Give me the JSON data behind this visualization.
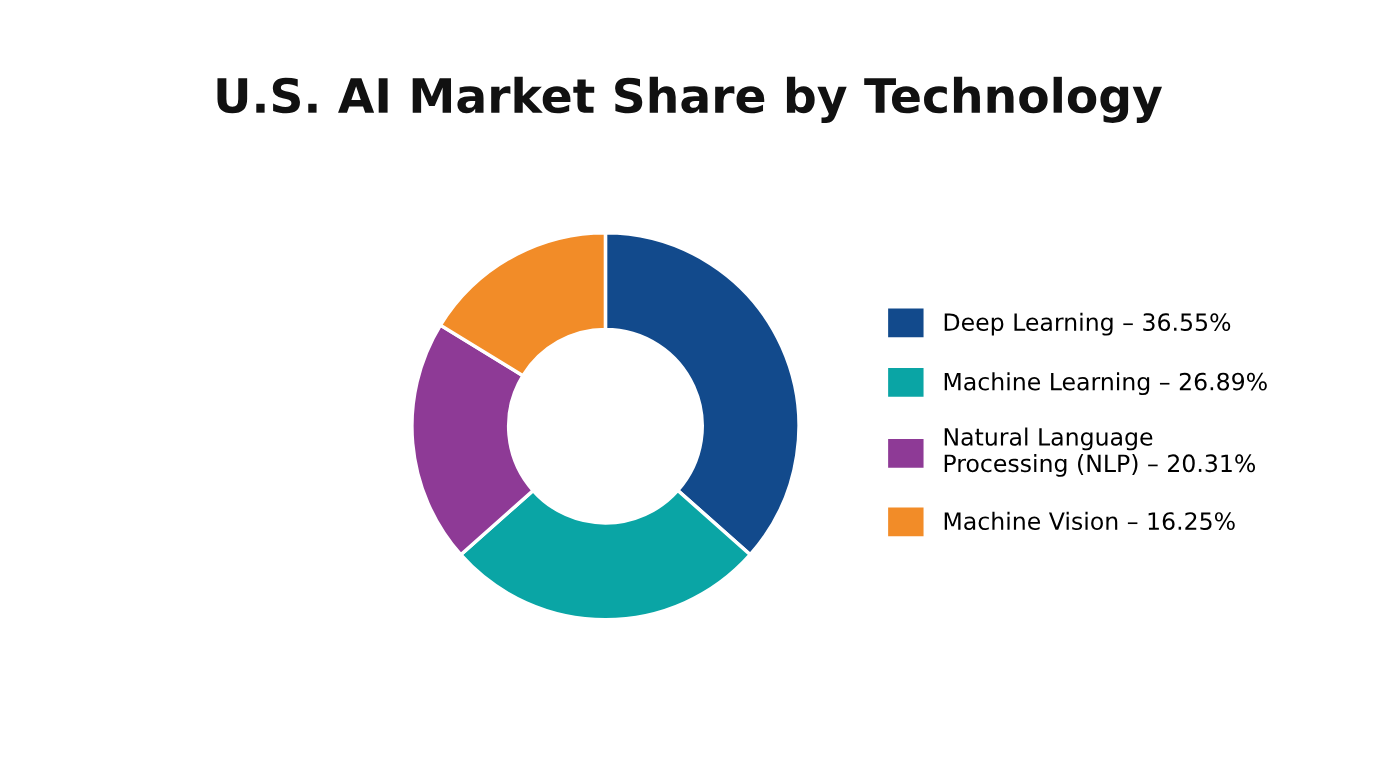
{
  "chart_data": {
    "type": "donut",
    "title": "U.S. AI Market Share by Technology",
    "categories": [
      "Deep Learning – 36.55%",
      "Machine Learning – 26.89%",
      "Natural Language\nProcessing (NLP) – 20.31%",
      "Machine Vision – 16.25%"
    ],
    "values": [
      36.55,
      26.89,
      20.31,
      16.25
    ],
    "colors": [
      "#124a8c",
      "#0aa5a5",
      "#8e3a96",
      "#f28c28"
    ],
    "legend": "right"
  }
}
